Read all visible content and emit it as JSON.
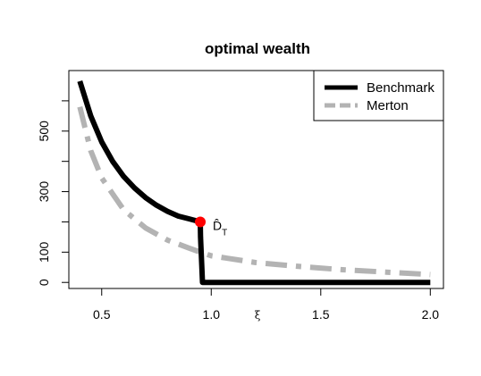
{
  "chart_data": {
    "type": "line",
    "title": "optimal wealth",
    "xlabel": "ξ",
    "ylabel": "",
    "xlim": [
      0.35,
      2.06
    ],
    "ylim": [
      -20,
      700
    ],
    "xticks": [
      0.5,
      1.0,
      1.5,
      2.0
    ],
    "xtick_labels": [
      "0.5",
      "1.0",
      "1.5",
      "2.0"
    ],
    "yticks": [
      0,
      100,
      200,
      300,
      400,
      500,
      600
    ],
    "ytick_labels": [
      "0",
      "100",
      "",
      "300",
      "",
      "500",
      ""
    ],
    "legend_position": "top-right",
    "grid": false,
    "series": [
      {
        "name": "Benchmark",
        "color": "#000000",
        "style": "solid",
        "x": [
          0.4,
          0.45,
          0.5,
          0.55,
          0.6,
          0.65,
          0.7,
          0.75,
          0.8,
          0.85,
          0.9,
          0.95,
          0.951,
          0.96,
          1.0,
          1.5,
          2.0
        ],
        "y": [
          665,
          550,
          464,
          400,
          350,
          312,
          280,
          255,
          235,
          219,
          210,
          200,
          150,
          0,
          0,
          0,
          0
        ]
      },
      {
        "name": "Merton",
        "color": "#b3b3b3",
        "style": "dashed",
        "x": [
          0.4,
          0.45,
          0.5,
          0.6,
          0.7,
          0.8,
          0.9,
          0.95,
          1.0,
          1.2,
          1.4,
          1.6,
          1.8,
          2.0
        ],
        "y": [
          580,
          435,
          345,
          240,
          180,
          140,
          113,
          100,
          88,
          66,
          53,
          42,
          34,
          26
        ]
      }
    ],
    "annotations": [
      {
        "label": "D̂T",
        "base": "D̂",
        "sub": "T",
        "x": 0.95,
        "y": 200,
        "color": "#ff0000"
      }
    ]
  }
}
